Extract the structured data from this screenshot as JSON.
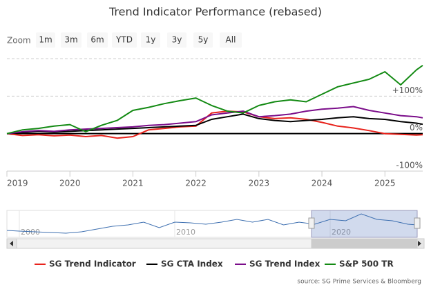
{
  "chart_data": {
    "type": "line",
    "title": "Trend Indicator Performance (rebased)",
    "x": [
      2019,
      2019.25,
      2019.5,
      2019.75,
      2020,
      2020.25,
      2020.5,
      2020.75,
      2021,
      2021.25,
      2021.5,
      2021.75,
      2022,
      2022.25,
      2022.5,
      2022.75,
      2023,
      2023.25,
      2023.5,
      2023.75,
      2024,
      2024.25,
      2024.5,
      2024.75,
      2025,
      2025.25,
      2025.5,
      2025.6
    ],
    "series": [
      {
        "name": "SG Trend Indicator",
        "color": "#e8231c",
        "values": [
          0,
          -5,
          -3,
          -6,
          -4,
          -8,
          -5,
          -12,
          -8,
          10,
          14,
          18,
          20,
          55,
          60,
          58,
          45,
          40,
          42,
          38,
          30,
          20,
          15,
          8,
          0,
          -2,
          -4,
          -3
        ]
      },
      {
        "name": "SG CTA Index",
        "color": "#000000",
        "values": [
          0,
          3,
          6,
          4,
          6,
          8,
          10,
          12,
          14,
          16,
          18,
          20,
          22,
          38,
          45,
          52,
          40,
          35,
          32,
          35,
          38,
          42,
          45,
          40,
          38,
          32,
          28,
          25
        ]
      },
      {
        "name": "SG Trend Index",
        "color": "#7b0d8a",
        "values": [
          0,
          5,
          8,
          6,
          10,
          12,
          14,
          16,
          18,
          22,
          24,
          28,
          32,
          50,
          55,
          60,
          45,
          48,
          52,
          60,
          65,
          68,
          72,
          62,
          55,
          48,
          45,
          42
        ]
      },
      {
        "name": "S&P 500 TR",
        "color": "#138a13",
        "values": [
          0,
          10,
          14,
          20,
          24,
          5,
          22,
          35,
          62,
          70,
          80,
          88,
          95,
          75,
          60,
          55,
          75,
          85,
          90,
          85,
          105,
          125,
          135,
          145,
          165,
          130,
          170,
          182
        ]
      }
    ],
    "xlim": [
      2019,
      2025.6
    ],
    "xticks": [
      2019,
      2020,
      2021,
      2022,
      2023,
      2024,
      2025
    ],
    "ylim": [
      -100,
      200
    ],
    "yticks": [
      {
        "value": -100,
        "label": "-100%"
      },
      {
        "value": 0,
        "label": "0%"
      },
      {
        "value": 100,
        "label": "+100%"
      }
    ],
    "grid": true,
    "legend": "bottom",
    "source": "source: SG Prime Services & Bloomberg"
  },
  "range_selector": {
    "label": "Zoom",
    "buttons": [
      "1m",
      "3m",
      "6m",
      "YTD",
      "1y",
      "3y",
      "5y",
      "All"
    ]
  },
  "navigator": {
    "x": [
      1999.2,
      2000,
      2001,
      2002,
      2003,
      2004,
      2005,
      2006,
      2007,
      2008,
      2009,
      2010,
      2011,
      2012,
      2013,
      2014,
      2015,
      2016,
      2017,
      2018,
      2019,
      2020,
      2021,
      2022,
      2023,
      2024,
      2025,
      2025.6
    ],
    "values": [
      6,
      5,
      4,
      3,
      2,
      4,
      8,
      12,
      14,
      18,
      10,
      18,
      17,
      15,
      18,
      22,
      18,
      22,
      14,
      18,
      15,
      22,
      20,
      30,
      22,
      20,
      15,
      14
    ],
    "xlim": [
      1999.2,
      2025.6
    ],
    "ylim": [
      0,
      35
    ],
    "xticks": [
      2000,
      2010,
      2020
    ],
    "selected_range": [
      2018.8,
      2025.6
    ],
    "color": "#3d6fb0"
  }
}
